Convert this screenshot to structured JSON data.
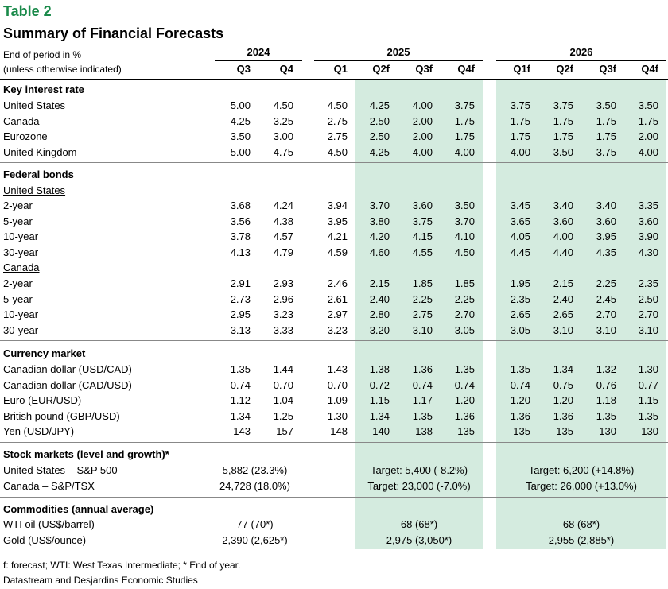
{
  "title": "Table 2",
  "subtitle": "Summary of Financial Forecasts",
  "note_line1": "End of period in %",
  "note_line2": "(unless otherwise indicated)",
  "years": [
    "2024",
    "2025",
    "2026"
  ],
  "columns": [
    "Q3",
    "Q4",
    "Q1",
    "Q2f",
    "Q3f",
    "Q4f",
    "Q1f",
    "Q2f",
    "Q3f",
    "Q4f"
  ],
  "sections": {
    "interest": {
      "title": "Key interest rate",
      "rows": [
        {
          "label": "United States",
          "values": [
            "5.00",
            "4.50",
            "4.50",
            "4.25",
            "4.00",
            "3.75",
            "3.75",
            "3.75",
            "3.50",
            "3.50"
          ]
        },
        {
          "label": "Canada",
          "values": [
            "4.25",
            "3.25",
            "2.75",
            "2.50",
            "2.00",
            "1.75",
            "1.75",
            "1.75",
            "1.75",
            "1.75"
          ]
        },
        {
          "label": "Eurozone",
          "values": [
            "3.50",
            "3.00",
            "2.75",
            "2.50",
            "2.00",
            "1.75",
            "1.75",
            "1.75",
            "1.75",
            "2.00"
          ]
        },
        {
          "label": "United Kingdom",
          "values": [
            "5.00",
            "4.75",
            "4.50",
            "4.25",
            "4.00",
            "4.00",
            "4.00",
            "3.50",
            "3.75",
            "4.00"
          ]
        }
      ]
    },
    "bonds": {
      "title": "Federal bonds",
      "us_label": "United States",
      "us_rows": [
        {
          "label": "2-year",
          "values": [
            "3.68",
            "4.24",
            "3.94",
            "3.70",
            "3.60",
            "3.50",
            "3.45",
            "3.40",
            "3.40",
            "3.35"
          ]
        },
        {
          "label": "5-year",
          "values": [
            "3.56",
            "4.38",
            "3.95",
            "3.80",
            "3.75",
            "3.70",
            "3.65",
            "3.60",
            "3.60",
            "3.60"
          ]
        },
        {
          "label": "10-year",
          "values": [
            "3.78",
            "4.57",
            "4.21",
            "4.20",
            "4.15",
            "4.10",
            "4.05",
            "4.00",
            "3.95",
            "3.90"
          ]
        },
        {
          "label": "30-year",
          "values": [
            "4.13",
            "4.79",
            "4.59",
            "4.60",
            "4.55",
            "4.50",
            "4.45",
            "4.40",
            "4.35",
            "4.30"
          ]
        }
      ],
      "ca_label": "Canada",
      "ca_rows": [
        {
          "label": "2-year",
          "values": [
            "2.91",
            "2.93",
            "2.46",
            "2.15",
            "1.85",
            "1.85",
            "1.95",
            "2.15",
            "2.25",
            "2.35"
          ]
        },
        {
          "label": "5-year",
          "values": [
            "2.73",
            "2.96",
            "2.61",
            "2.40",
            "2.25",
            "2.25",
            "2.35",
            "2.40",
            "2.45",
            "2.50"
          ]
        },
        {
          "label": "10-year",
          "values": [
            "2.95",
            "3.23",
            "2.97",
            "2.80",
            "2.75",
            "2.70",
            "2.65",
            "2.65",
            "2.70",
            "2.70"
          ]
        },
        {
          "label": "30-year",
          "values": [
            "3.13",
            "3.33",
            "3.23",
            "3.20",
            "3.10",
            "3.05",
            "3.05",
            "3.10",
            "3.10",
            "3.10"
          ]
        }
      ]
    },
    "currency": {
      "title": "Currency market",
      "rows": [
        {
          "label": "Canadian dollar (USD/CAD)",
          "values": [
            "1.35",
            "1.44",
            "1.43",
            "1.38",
            "1.36",
            "1.35",
            "1.35",
            "1.34",
            "1.32",
            "1.30"
          ]
        },
        {
          "label": "Canadian dollar (CAD/USD)",
          "values": [
            "0.74",
            "0.70",
            "0.70",
            "0.72",
            "0.74",
            "0.74",
            "0.74",
            "0.75",
            "0.76",
            "0.77"
          ]
        },
        {
          "label": "Euro (EUR/USD)",
          "values": [
            "1.12",
            "1.04",
            "1.09",
            "1.15",
            "1.17",
            "1.20",
            "1.20",
            "1.20",
            "1.18",
            "1.15"
          ]
        },
        {
          "label": "British pound (GBP/USD)",
          "values": [
            "1.34",
            "1.25",
            "1.30",
            "1.34",
            "1.35",
            "1.36",
            "1.36",
            "1.36",
            "1.35",
            "1.35"
          ]
        },
        {
          "label": "Yen (USD/JPY)",
          "values": [
            "143",
            "157",
            "148",
            "140",
            "138",
            "135",
            "135",
            "135",
            "130",
            "130"
          ]
        }
      ]
    },
    "stocks": {
      "title": "Stock markets (level and growth)*",
      "rows": [
        {
          "label": "United States – S&P 500",
          "y2024": "5,882 (23.3%)",
          "y2025": "Target: 5,400 (-8.2%)",
          "y2026": "Target: 6,200 (+14.8%)"
        },
        {
          "label": "Canada – S&P/TSX",
          "y2024": "24,728 (18.0%)",
          "y2025": "Target: 23,000 (-7.0%)",
          "y2026": "Target: 26,000 (+13.0%)"
        }
      ]
    },
    "commodities": {
      "title": "Commodities (annual average)",
      "rows": [
        {
          "label": "WTI oil (US$/barrel)",
          "y2024": "77 (70*)",
          "y2025": "68 (68*)",
          "y2026": "68 (68*)"
        },
        {
          "label": "Gold (US$/ounce)",
          "y2024": "2,390 (2,625*)",
          "y2025": "2,975 (3,050*)",
          "y2026": "2,955 (2,885*)"
        }
      ]
    }
  },
  "footnote1": "f: forecast; WTI: West Texas Intermediate; * End of year.",
  "footnote2": "Datastream and Desjardins Economic Studies",
  "shade_color": "#d4ebdf",
  "title_color": "#1a8a4a"
}
